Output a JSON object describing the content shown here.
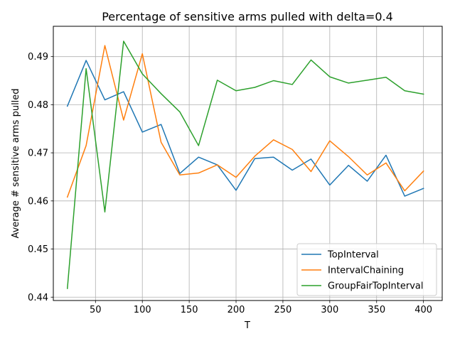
{
  "chart_data": {
    "type": "line",
    "title": "Percentage of sensitive arms pulled with delta=0.4",
    "xlabel": "T",
    "ylabel": "Average # sensitive arms pulled",
    "xlim": [
      5,
      420
    ],
    "ylim": [
      0.4393,
      0.4963
    ],
    "xticks": [
      50,
      100,
      150,
      200,
      250,
      300,
      350,
      400
    ],
    "yticks": [
      0.44,
      0.45,
      0.46,
      0.47,
      0.48,
      0.49
    ],
    "ytick_labels": [
      "0.44",
      "0.45",
      "0.46",
      "0.47",
      "0.48",
      "0.49"
    ],
    "grid": true,
    "legend": "lower-right",
    "x": [
      20,
      40,
      60,
      80,
      100,
      120,
      140,
      160,
      180,
      200,
      220,
      240,
      260,
      280,
      300,
      320,
      340,
      360,
      380,
      400
    ],
    "series": [
      {
        "name": "TopInterval",
        "color": "#1f77b4",
        "values": [
          0.4797,
          0.4892,
          0.481,
          0.4827,
          0.4743,
          0.4759,
          0.4657,
          0.4691,
          0.4675,
          0.4622,
          0.4688,
          0.4691,
          0.4664,
          0.4687,
          0.4633,
          0.4674,
          0.4641,
          0.4695,
          0.461,
          0.4626
        ]
      },
      {
        "name": "IntervalChaining",
        "color": "#ff7f0e",
        "values": [
          0.4608,
          0.4715,
          0.4923,
          0.4768,
          0.4906,
          0.4722,
          0.4654,
          0.4658,
          0.4675,
          0.4649,
          0.4693,
          0.4727,
          0.4707,
          0.4661,
          0.4725,
          0.4692,
          0.4654,
          0.4679,
          0.4621,
          0.4662
        ]
      },
      {
        "name": "GroupFairTopInterval",
        "color": "#2ca02c",
        "values": [
          0.4418,
          0.4875,
          0.4577,
          0.4932,
          0.4864,
          0.4823,
          0.4785,
          0.4715,
          0.4851,
          0.4829,
          0.4836,
          0.485,
          0.4842,
          0.4893,
          0.4858,
          0.4845,
          0.4851,
          0.4857,
          0.4829,
          0.4822
        ]
      }
    ]
  }
}
